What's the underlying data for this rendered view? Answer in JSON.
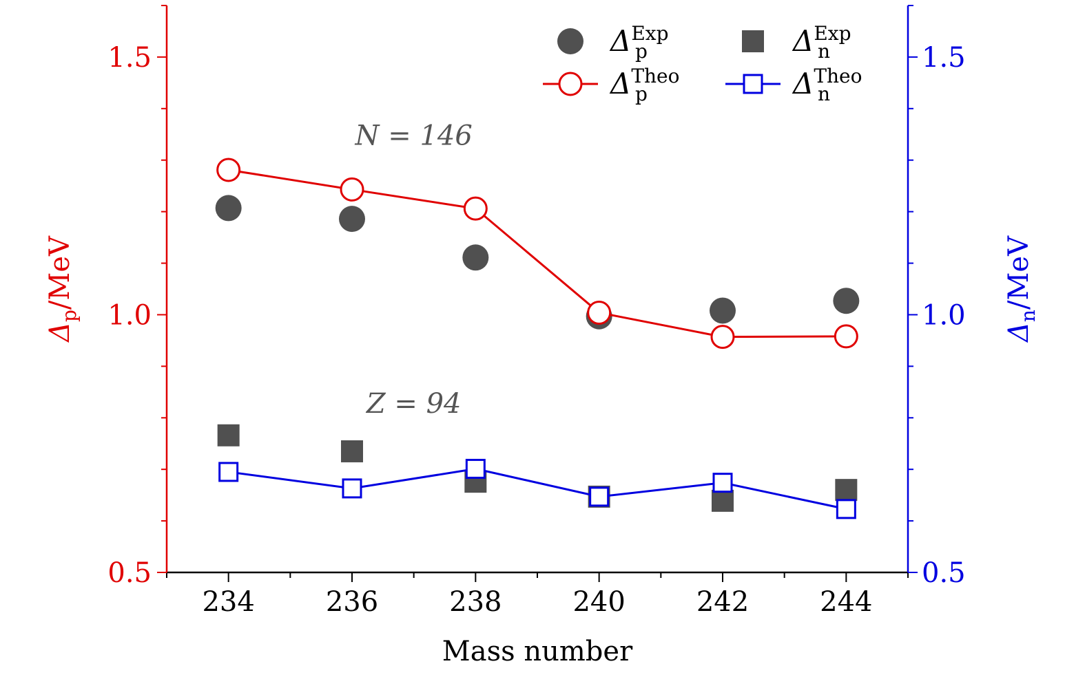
{
  "chart_data": {
    "type": "scatter",
    "xlabel": "Mass number",
    "ylabel_left": {
      "symbol": "Δ",
      "sub": "p",
      "suffix": "/MeV"
    },
    "ylabel_right": {
      "symbol": "Δ",
      "sub": "n",
      "suffix": "/MeV"
    },
    "xlim": [
      233,
      245
    ],
    "ylim": [
      0.5,
      1.6
    ],
    "ylim_right": [
      0.5,
      1.6
    ],
    "x_ticks": [
      "234",
      "236",
      "238",
      "240",
      "242",
      "244"
    ],
    "y_ticks": [
      "0.5",
      "1.0",
      "1.5"
    ],
    "y_ticks_right": [
      "0.5",
      "1.0",
      "1.5"
    ],
    "grid": false,
    "legend_placement": "top-right",
    "axis_colors": {
      "left": "#e00000",
      "right": "#0000e0",
      "bottom": "#000000"
    },
    "annotations": [
      {
        "text": "N = 146",
        "x": 237,
        "y": 1.33
      },
      {
        "text": "Z = 94",
        "x": 237,
        "y": 0.81
      }
    ],
    "x": [
      234,
      236,
      238,
      240,
      242,
      244
    ],
    "series": [
      {
        "name": {
          "symbol": "Δ",
          "sub": "p",
          "sup": "Exp"
        },
        "values": [
          1.207,
          1.186,
          1.111,
          0.997,
          1.008,
          1.027
        ],
        "marker": "filled-circle",
        "line": false,
        "color": "#505050"
      },
      {
        "name": {
          "symbol": "Δ",
          "sub": "n",
          "sup": "Exp"
        },
        "values": [
          0.766,
          0.735,
          0.676,
          0.647,
          0.639,
          0.66
        ],
        "marker": "filled-square",
        "line": false,
        "color": "#505050"
      },
      {
        "name": {
          "symbol": "Δ",
          "sub": "p",
          "sup": "Theo"
        },
        "values": [
          1.281,
          1.243,
          1.206,
          1.004,
          0.957,
          0.958
        ],
        "marker": "open-circle",
        "line": true,
        "color": "#e00000"
      },
      {
        "name": {
          "symbol": "Δ",
          "sub": "n",
          "sup": "Theo"
        },
        "values": [
          0.695,
          0.663,
          0.701,
          0.647,
          0.674,
          0.623
        ],
        "marker": "open-square",
        "line": true,
        "color": "#0000e0"
      }
    ]
  }
}
